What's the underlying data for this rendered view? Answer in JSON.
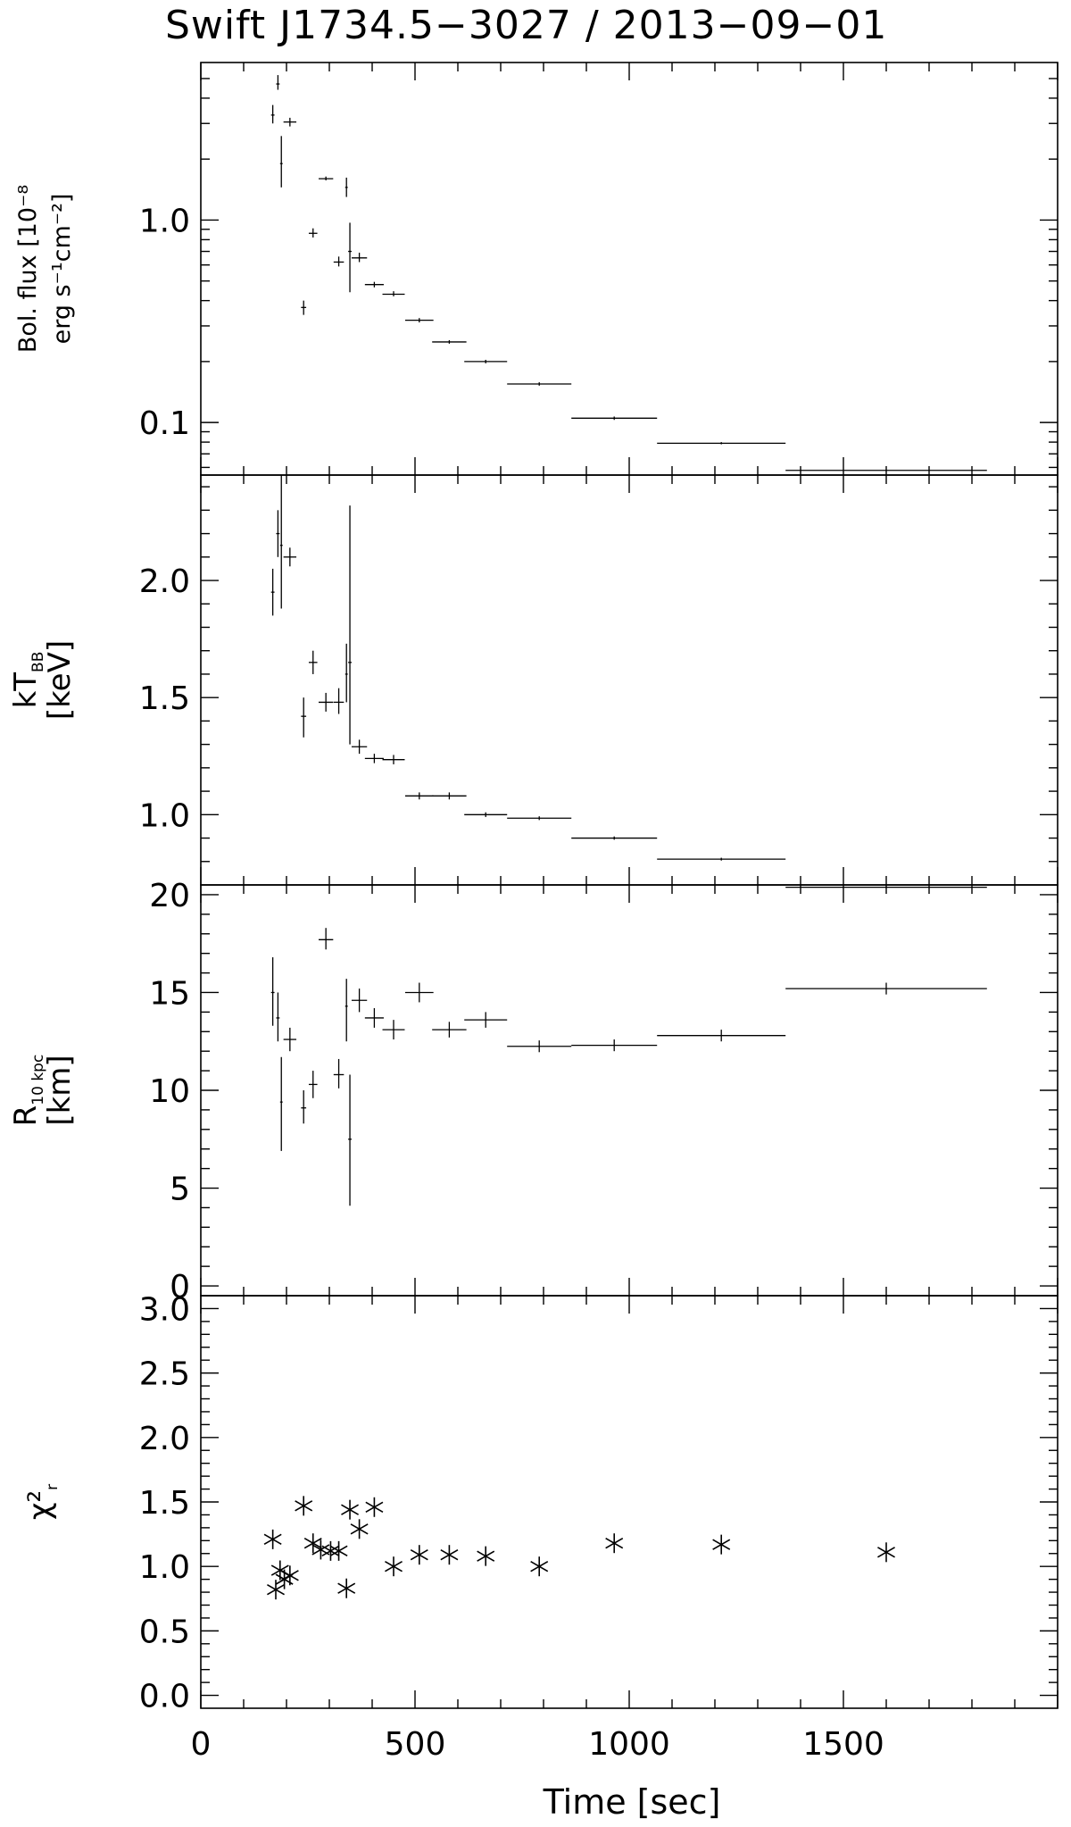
{
  "chart_data": {
    "type": "scatter",
    "title": "Swift J1734.5−3027 / 2013−09−01",
    "xlabel": "Time [sec]",
    "xlim": [
      0,
      2000
    ],
    "xticks": [
      0,
      500,
      1000,
      1500
    ],
    "panels": [
      {
        "id": "flux",
        "ylabel": [
          "Bol. flux [10⁻⁸",
          "erg s⁻¹cm⁻²]"
        ],
        "yscale": "log",
        "ylim": [
          0.055,
          6.0
        ],
        "yticks": [
          {
            "v": 0.1,
            "label": "0.1"
          },
          {
            "v": 1.0,
            "label": "1.0"
          }
        ],
        "minor_ticks": [
          0.06,
          0.07,
          0.08,
          0.09,
          0.2,
          0.3,
          0.4,
          0.5,
          0.6,
          0.7,
          0.8,
          0.9,
          2,
          3,
          4,
          5
        ],
        "points": [
          {
            "x": 168,
            "xerr": 4,
            "y": 3.3,
            "ylo": 3.0,
            "yhi": 3.7
          },
          {
            "x": 180,
            "xerr": 4,
            "y": 4.7,
            "ylo": 4.4,
            "yhi": 5.2
          },
          {
            "x": 188,
            "xerr": 3,
            "y": 1.9,
            "ylo": 1.45,
            "yhi": 2.6
          },
          {
            "x": 208,
            "xerr": 15,
            "y": 3.05,
            "ylo": 2.9,
            "yhi": 3.2
          },
          {
            "x": 240,
            "xerr": 6,
            "y": 0.37,
            "ylo": 0.34,
            "yhi": 0.4
          },
          {
            "x": 262,
            "xerr": 10,
            "y": 0.86,
            "ylo": 0.82,
            "yhi": 0.91
          },
          {
            "x": 292,
            "xerr": 17,
            "y": 1.6,
            "ylo": 1.57,
            "yhi": 1.64
          },
          {
            "x": 322,
            "xerr": 12,
            "y": 0.62,
            "ylo": 0.59,
            "yhi": 0.66
          },
          {
            "x": 340,
            "xerr": 3,
            "y": 1.45,
            "ylo": 1.3,
            "yhi": 1.62
          },
          {
            "x": 348,
            "xerr": 4,
            "y": 0.7,
            "ylo": 0.44,
            "yhi": 0.97
          },
          {
            "x": 370,
            "xerr": 18,
            "y": 0.65,
            "ylo": 0.62,
            "yhi": 0.69
          },
          {
            "x": 405,
            "xerr": 22,
            "y": 0.48,
            "ylo": 0.465,
            "yhi": 0.495
          },
          {
            "x": 450,
            "xerr": 26,
            "y": 0.43,
            "ylo": 0.42,
            "yhi": 0.445
          },
          {
            "x": 510,
            "xerr": 33,
            "y": 0.32,
            "ylo": 0.312,
            "yhi": 0.328
          },
          {
            "x": 580,
            "xerr": 40,
            "y": 0.25,
            "ylo": 0.245,
            "yhi": 0.255
          },
          {
            "x": 665,
            "xerr": 50,
            "y": 0.2,
            "ylo": 0.196,
            "yhi": 0.204
          },
          {
            "x": 790,
            "xerr": 75,
            "y": 0.155,
            "ylo": 0.152,
            "yhi": 0.158
          },
          {
            "x": 965,
            "xerr": 100,
            "y": 0.105,
            "ylo": 0.103,
            "yhi": 0.107
          },
          {
            "x": 1215,
            "xerr": 150,
            "y": 0.079,
            "ylo": 0.078,
            "yhi": 0.08
          },
          {
            "x": 1600,
            "xerr": 235,
            "y": 0.058,
            "ylo": 0.0575,
            "yhi": 0.0585
          }
        ]
      },
      {
        "id": "kT",
        "ylabel": [
          "kT_BB",
          "[keV]"
        ],
        "yscale": "linear",
        "ylim": [
          0.7,
          2.45
        ],
        "yticks": [
          {
            "v": 1.0,
            "label": "1.0"
          },
          {
            "v": 1.5,
            "label": "1.5"
          },
          {
            "v": 2.0,
            "label": "2.0"
          }
        ],
        "minor_ticks": [
          0.8,
          0.9,
          1.1,
          1.2,
          1.3,
          1.4,
          1.6,
          1.7,
          1.8,
          1.9,
          2.1,
          2.2,
          2.3,
          2.4
        ],
        "points": [
          {
            "x": 168,
            "xerr": 4,
            "y": 1.95,
            "ylo": 1.85,
            "yhi": 2.05
          },
          {
            "x": 180,
            "xerr": 4,
            "y": 2.2,
            "ylo": 2.1,
            "yhi": 2.3
          },
          {
            "x": 188,
            "xerr": 3,
            "y": 2.15,
            "ylo": 1.88,
            "yhi": 2.45
          },
          {
            "x": 208,
            "xerr": 15,
            "y": 2.1,
            "ylo": 2.06,
            "yhi": 2.14
          },
          {
            "x": 240,
            "xerr": 6,
            "y": 1.42,
            "ylo": 1.33,
            "yhi": 1.5
          },
          {
            "x": 262,
            "xerr": 10,
            "y": 1.65,
            "ylo": 1.6,
            "yhi": 1.7
          },
          {
            "x": 292,
            "xerr": 17,
            "y": 1.48,
            "ylo": 1.44,
            "yhi": 1.52
          },
          {
            "x": 322,
            "xerr": 12,
            "y": 1.48,
            "ylo": 1.43,
            "yhi": 1.54
          },
          {
            "x": 340,
            "xerr": 3,
            "y": 1.6,
            "ylo": 1.48,
            "yhi": 1.73
          },
          {
            "x": 348,
            "xerr": 4,
            "y": 1.65,
            "ylo": 1.3,
            "yhi": 2.32
          },
          {
            "x": 370,
            "xerr": 18,
            "y": 1.29,
            "ylo": 1.26,
            "yhi": 1.32
          },
          {
            "x": 405,
            "xerr": 22,
            "y": 1.24,
            "ylo": 1.22,
            "yhi": 1.26
          },
          {
            "x": 450,
            "xerr": 26,
            "y": 1.235,
            "ylo": 1.215,
            "yhi": 1.255
          },
          {
            "x": 510,
            "xerr": 33,
            "y": 1.08,
            "ylo": 1.065,
            "yhi": 1.095
          },
          {
            "x": 580,
            "xerr": 40,
            "y": 1.08,
            "ylo": 1.065,
            "yhi": 1.095
          },
          {
            "x": 665,
            "xerr": 50,
            "y": 1.0,
            "ylo": 0.99,
            "yhi": 1.01
          },
          {
            "x": 790,
            "xerr": 75,
            "y": 0.985,
            "ylo": 0.977,
            "yhi": 0.993
          },
          {
            "x": 965,
            "xerr": 100,
            "y": 0.9,
            "ylo": 0.893,
            "yhi": 0.907
          },
          {
            "x": 1215,
            "xerr": 150,
            "y": 0.81,
            "ylo": 0.804,
            "yhi": 0.816
          },
          {
            "x": 1600,
            "xerr": 235,
            "y": 0.69,
            "ylo": 0.686,
            "yhi": 0.694
          }
        ]
      },
      {
        "id": "R",
        "ylabel": [
          "R_10 kpc",
          "[km]"
        ],
        "yscale": "linear",
        "ylim": [
          -0.5,
          20.5
        ],
        "yticks": [
          {
            "v": 0,
            "label": "0"
          },
          {
            "v": 5,
            "label": "5"
          },
          {
            "v": 10,
            "label": "10"
          },
          {
            "v": 15,
            "label": "15"
          },
          {
            "v": 20,
            "label": "20"
          }
        ],
        "minor_ticks": [
          1,
          2,
          3,
          4,
          6,
          7,
          8,
          9,
          11,
          12,
          13,
          14,
          16,
          17,
          18,
          19
        ],
        "points": [
          {
            "x": 168,
            "xerr": 4,
            "y": 15.0,
            "ylo": 13.3,
            "yhi": 16.8
          },
          {
            "x": 180,
            "xerr": 4,
            "y": 13.7,
            "ylo": 12.5,
            "yhi": 15.0
          },
          {
            "x": 188,
            "xerr": 3,
            "y": 9.4,
            "ylo": 6.9,
            "yhi": 11.7
          },
          {
            "x": 208,
            "xerr": 15,
            "y": 12.6,
            "ylo": 12.0,
            "yhi": 13.2
          },
          {
            "x": 240,
            "xerr": 6,
            "y": 9.1,
            "ylo": 8.3,
            "yhi": 10.0
          },
          {
            "x": 262,
            "xerr": 10,
            "y": 10.3,
            "ylo": 9.6,
            "yhi": 11.0
          },
          {
            "x": 292,
            "xerr": 17,
            "y": 17.7,
            "ylo": 17.2,
            "yhi": 18.3
          },
          {
            "x": 322,
            "xerr": 12,
            "y": 10.8,
            "ylo": 10.1,
            "yhi": 11.6
          },
          {
            "x": 340,
            "xerr": 3,
            "y": 14.3,
            "ylo": 12.5,
            "yhi": 15.7
          },
          {
            "x": 348,
            "xerr": 4,
            "y": 7.5,
            "ylo": 4.1,
            "yhi": 10.8
          },
          {
            "x": 370,
            "xerr": 18,
            "y": 14.6,
            "ylo": 14.0,
            "yhi": 15.2
          },
          {
            "x": 405,
            "xerr": 22,
            "y": 13.7,
            "ylo": 13.2,
            "yhi": 14.2
          },
          {
            "x": 450,
            "xerr": 26,
            "y": 13.1,
            "ylo": 12.6,
            "yhi": 13.6
          },
          {
            "x": 510,
            "xerr": 33,
            "y": 15.0,
            "ylo": 14.5,
            "yhi": 15.5
          },
          {
            "x": 580,
            "xerr": 40,
            "y": 13.1,
            "ylo": 12.7,
            "yhi": 13.5
          },
          {
            "x": 665,
            "xerr": 50,
            "y": 13.6,
            "ylo": 13.2,
            "yhi": 14.0
          },
          {
            "x": 790,
            "xerr": 75,
            "y": 12.25,
            "ylo": 11.95,
            "yhi": 12.55
          },
          {
            "x": 965,
            "xerr": 100,
            "y": 12.3,
            "ylo": 12.0,
            "yhi": 12.6
          },
          {
            "x": 1215,
            "xerr": 150,
            "y": 12.8,
            "ylo": 12.5,
            "yhi": 13.1
          },
          {
            "x": 1600,
            "xerr": 235,
            "y": 15.2,
            "ylo": 14.9,
            "yhi": 15.5
          }
        ]
      },
      {
        "id": "chi2",
        "ylabel": [
          "χ²_r"
        ],
        "yscale": "linear",
        "ylim": [
          -0.1,
          3.1
        ],
        "yticks": [
          {
            "v": 0.0,
            "label": "0.0"
          },
          {
            "v": 0.5,
            "label": "0.5"
          },
          {
            "v": 1.0,
            "label": "1.0"
          },
          {
            "v": 1.5,
            "label": "1.5"
          },
          {
            "v": 2.0,
            "label": "2.0"
          },
          {
            "v": 2.5,
            "label": "2.5"
          },
          {
            "v": 3.0,
            "label": "3.0"
          }
        ],
        "minor_ticks": [
          0.1,
          0.2,
          0.3,
          0.4,
          0.6,
          0.7,
          0.8,
          0.9,
          1.1,
          1.2,
          1.3,
          1.4,
          1.6,
          1.7,
          1.8,
          1.9,
          2.1,
          2.2,
          2.3,
          2.4,
          2.6,
          2.7,
          2.8,
          2.9
        ],
        "marker": "asterisk",
        "points": [
          {
            "x": 168,
            "y": 1.21
          },
          {
            "x": 175,
            "y": 0.82
          },
          {
            "x": 185,
            "y": 0.97
          },
          {
            "x": 195,
            "y": 0.9
          },
          {
            "x": 208,
            "y": 0.93
          },
          {
            "x": 240,
            "y": 1.47
          },
          {
            "x": 262,
            "y": 1.18
          },
          {
            "x": 280,
            "y": 1.13
          },
          {
            "x": 303,
            "y": 1.12
          },
          {
            "x": 322,
            "y": 1.12
          },
          {
            "x": 340,
            "y": 0.83
          },
          {
            "x": 348,
            "y": 1.44
          },
          {
            "x": 370,
            "y": 1.29
          },
          {
            "x": 405,
            "y": 1.46
          },
          {
            "x": 450,
            "y": 1.0
          },
          {
            "x": 510,
            "y": 1.09
          },
          {
            "x": 580,
            "y": 1.09
          },
          {
            "x": 665,
            "y": 1.08
          },
          {
            "x": 790,
            "y": 1.0
          },
          {
            "x": 965,
            "y": 1.18
          },
          {
            "x": 1215,
            "y": 1.17
          },
          {
            "x": 1600,
            "y": 1.11
          }
        ]
      }
    ]
  }
}
